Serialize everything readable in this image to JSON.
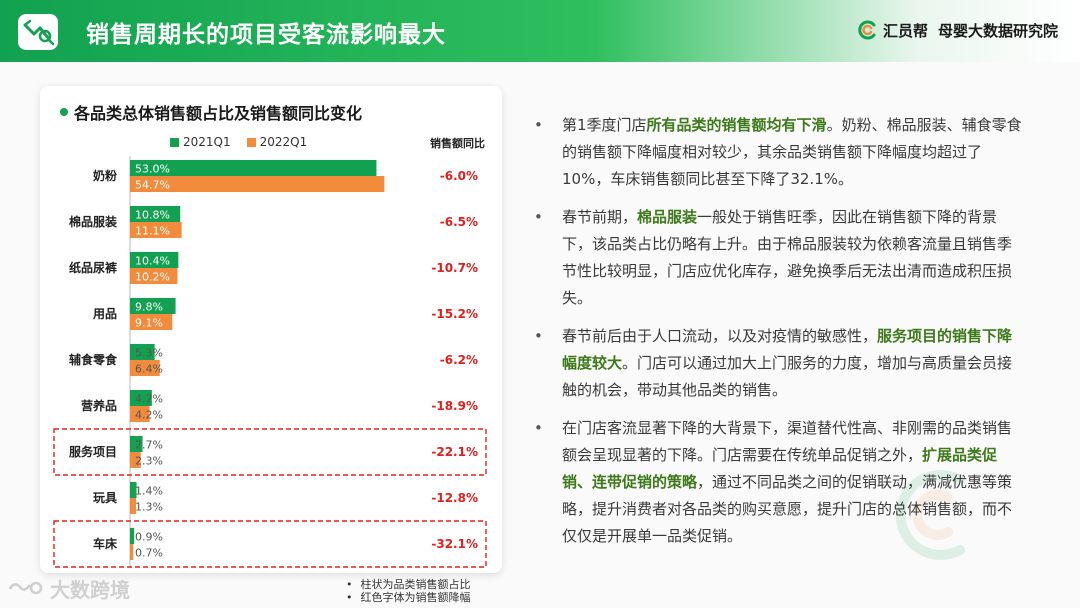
{
  "header": {
    "title": "销售周期长的项目受客流影响最大",
    "brand_name": "汇员帮",
    "brand_sub": "母婴大数据研究院"
  },
  "watermark": {
    "text": "大数跨境"
  },
  "chart_title": "各品类总体销售额占比及销售额同比变化",
  "legend": {
    "series_a": "2021Q1",
    "series_b": "2022Q1",
    "yoy_header": "销售额同比"
  },
  "colors": {
    "series_a": "#12a150",
    "series_b": "#f28c3c",
    "yoy": "#e0201c",
    "highlight_box": "#e0201c"
  },
  "chart_data": {
    "type": "bar",
    "orientation": "horizontal",
    "categories": [
      "奶粉",
      "棉品服装",
      "纸品尿裤",
      "用品",
      "辅食零食",
      "营养品",
      "服务项目",
      "玩具",
      "车床"
    ],
    "series": [
      {
        "name": "2021Q1",
        "values": [
          53.0,
          10.8,
          10.4,
          9.8,
          5.3,
          4.7,
          2.7,
          1.4,
          0.9
        ],
        "labels": [
          "53.0%",
          "10.8%",
          "10.4%",
          "9.8%",
          "5.3%",
          "4.7%",
          "2.7%",
          "1.4%",
          "0.9%"
        ]
      },
      {
        "name": "2022Q1",
        "values": [
          54.7,
          11.1,
          10.2,
          9.1,
          6.4,
          4.2,
          2.3,
          1.3,
          0.7
        ],
        "labels": [
          "54.7%",
          "11.1%",
          "10.2%",
          "9.1%",
          "6.4%",
          "4.2%",
          "2.3%",
          "1.3%",
          "0.7%"
        ]
      }
    ],
    "yoy": [
      "-6.0%",
      "-6.5%",
      "-10.7%",
      "-15.2%",
      "-6.2%",
      "-18.9%",
      "-22.1%",
      "-12.8%",
      "-32.1%"
    ],
    "highlighted_categories": [
      "服务项目",
      "车床"
    ]
  },
  "notes": [
    "柱状为品类销售额占比",
    "红色字体为销售额降幅"
  ],
  "bullets": [
    [
      {
        "t": "第1季度门店",
        "hl": false
      },
      {
        "t": "所有品类的销售额均有下滑",
        "hl": true
      },
      {
        "t": "。奶粉、棉品服装、辅食零食的销售额下降幅度相对较少，其余品类销售额下降幅度均超过了10%，车床销售额同比甚至下降了32.1%。",
        "hl": false
      }
    ],
    [
      {
        "t": "春节前期，",
        "hl": false
      },
      {
        "t": "棉品服装",
        "hl": true
      },
      {
        "t": "一般处于销售旺季，因此在销售额下降的背景下，该品类占比仍略有上升。由于棉品服装较为依赖客流量且销售季节性比较明显，门店应优化库存，避免换季后无法出清而造成积压损失。",
        "hl": false
      }
    ],
    [
      {
        "t": "春节前后由于人口流动，以及对疫情的敏感性，",
        "hl": false
      },
      {
        "t": "服务项目的销售下降幅度较大",
        "hl": true
      },
      {
        "t": "。门店可以通过加大上门服务的力度，增加与高质量会员接触的机会，带动其他品类的销售。",
        "hl": false
      }
    ],
    [
      {
        "t": "在门店客流显著下降的大背景下，渠道替代性高、非刚需的品类销售额会呈现显著的下降。门店需要在传统单品促销之外，",
        "hl": false
      },
      {
        "t": "扩展品类促销、连带促销的策略",
        "hl": true
      },
      {
        "t": "，通过不同品类之间的促销联动，满减优惠等策略，提升消费者对各品类的购买意愿，提升门店的总体销售额，而不仅仅是开展单一品类促销。",
        "hl": false
      }
    ]
  ]
}
